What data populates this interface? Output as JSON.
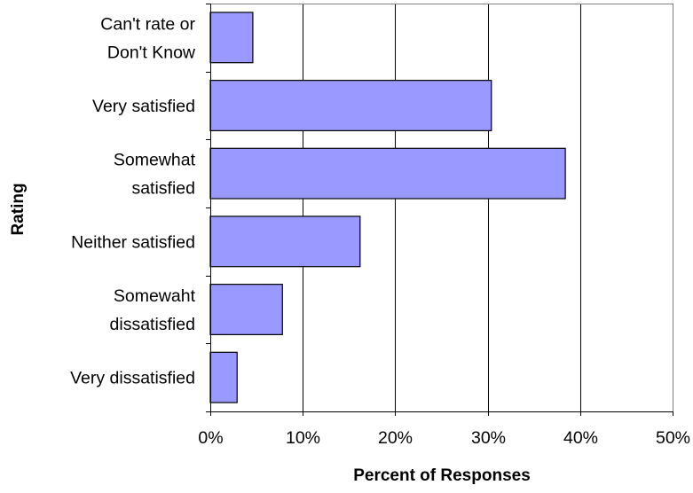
{
  "chart_data": {
    "type": "bar",
    "orientation": "horizontal",
    "categories": [
      [
        "Can't rate or",
        "Don't Know"
      ],
      [
        "Very satisfied"
      ],
      [
        "Somewhat",
        "satisfied"
      ],
      [
        "Neither satisfied"
      ],
      [
        "Somewaht",
        "dissatisfied"
      ],
      [
        "Very dissatisfied"
      ]
    ],
    "values": [
      4.6,
      30.4,
      38.4,
      16.2,
      7.8,
      2.9
    ],
    "xlabel": "Percent of Responses",
    "ylabel": "Rating",
    "xlim": [
      0,
      50
    ],
    "xticks": [
      0,
      10,
      20,
      30,
      40,
      50
    ],
    "xtick_labels": [
      "0%",
      "10%",
      "20%",
      "30%",
      "40%",
      "50%"
    ],
    "grid": "vertical",
    "legend": "none",
    "colors": {
      "bar_fill": "#9999ff",
      "bar_stroke": "#000000",
      "gridline": "#000000",
      "plot_border": "#808080"
    }
  }
}
